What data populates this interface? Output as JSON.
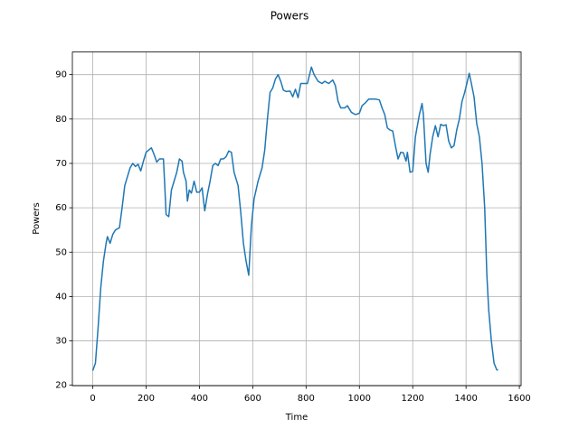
{
  "chart_data": {
    "type": "line",
    "title": "Powers",
    "x_label": "Time",
    "y_label": "Powers",
    "x": [
      0,
      10,
      20,
      30,
      40,
      50,
      55,
      65,
      75,
      85,
      100,
      110,
      120,
      130,
      140,
      150,
      160,
      170,
      180,
      190,
      200,
      210,
      220,
      230,
      240,
      250,
      265,
      270,
      275,
      285,
      295,
      305,
      315,
      325,
      335,
      340,
      350,
      355,
      362,
      370,
      380,
      390,
      400,
      410,
      420,
      430,
      440,
      450,
      460,
      470,
      480,
      490,
      500,
      510,
      520,
      530,
      545,
      555,
      565,
      575,
      585,
      595,
      605,
      620,
      635,
      645,
      655,
      665,
      675,
      685,
      695,
      705,
      715,
      725,
      740,
      750,
      760,
      770,
      780,
      795,
      805,
      820,
      830,
      845,
      860,
      870,
      885,
      900,
      910,
      920,
      930,
      945,
      955,
      970,
      985,
      1000,
      1010,
      1020,
      1035,
      1060,
      1075,
      1085,
      1095,
      1105,
      1115,
      1125,
      1135,
      1145,
      1155,
      1165,
      1175,
      1180,
      1190,
      1200,
      1210,
      1225,
      1235,
      1240,
      1250,
      1258,
      1265,
      1275,
      1285,
      1295,
      1305,
      1315,
      1325,
      1335,
      1345,
      1355,
      1365,
      1375,
      1385,
      1395,
      1405,
      1412,
      1420,
      1430,
      1440,
      1450,
      1460,
      1470,
      1478,
      1485,
      1495,
      1505,
      1515,
      1520
    ],
    "series": [
      {
        "name": "Powers",
        "color": "#1f77b4",
        "values": [
          23.3,
          25,
          33,
          42,
          48,
          52,
          53.5,
          52,
          54,
          55,
          55.5,
          60,
          65,
          67,
          69,
          70,
          69.3,
          69.8,
          68.3,
          70.5,
          72.5,
          73,
          73.5,
          72,
          70.3,
          71,
          71,
          65,
          58.5,
          58,
          64,
          66,
          68,
          71,
          70.5,
          68,
          66,
          61.5,
          64,
          63.3,
          66,
          63.5,
          63.5,
          64.5,
          59.3,
          63,
          66,
          69.5,
          70,
          69.5,
          71,
          71,
          71.5,
          72.8,
          72.5,
          68,
          65,
          59,
          52,
          48,
          44.8,
          56,
          62,
          66,
          69,
          73,
          80,
          86,
          87,
          89,
          90,
          88.5,
          86.5,
          86.2,
          86.3,
          85,
          86.7,
          84.8,
          88,
          88,
          88,
          91.7,
          90,
          88.5,
          88,
          88.5,
          88,
          88.8,
          87.5,
          84,
          82.5,
          82.5,
          83,
          81.5,
          81,
          81.3,
          83,
          83.5,
          84.5,
          84.5,
          84.3,
          82.5,
          81,
          78,
          77.5,
          77.3,
          74,
          71,
          72.5,
          72.4,
          70.5,
          72.5,
          68,
          68.2,
          76,
          81,
          83.5,
          81,
          70,
          68,
          72,
          76,
          78.5,
          76,
          78.8,
          78.5,
          78.7,
          75,
          73.5,
          74,
          77.5,
          80,
          84,
          86,
          88.5,
          90.3,
          88,
          85,
          79,
          76,
          70,
          60,
          45,
          37,
          30,
          25,
          23.5,
          23.4
        ]
      }
    ],
    "xlim": [
      -76.5,
      1606.5
    ],
    "ylim": [
      19.9,
      95.1
    ],
    "xticks": [
      0,
      200,
      400,
      600,
      800,
      1000,
      1200,
      1400,
      1600
    ],
    "yticks": [
      20,
      30,
      40,
      50,
      60,
      70,
      80,
      90
    ],
    "grid": true
  }
}
